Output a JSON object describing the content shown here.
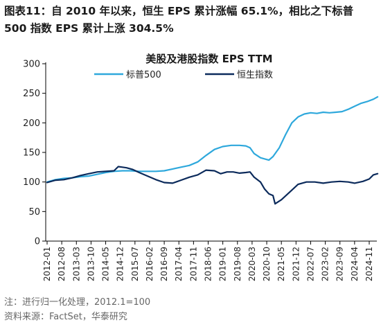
{
  "figure": {
    "label": "图表11：",
    "title": "自 2010 年以来，恒生 EPS 累计涨幅 65.1%，相比之下标普 500 指数 EPS 累计上涨 304.5%"
  },
  "notes": {
    "note": "注：进行归一化处理，2012.1=100",
    "source": "资料来源：FactSet，华泰研究"
  },
  "colors": {
    "sp500": "#2EA8DC",
    "hsi": "#0B2A5B",
    "axis": "#000000"
  },
  "chart_data": {
    "type": "line",
    "title": "美股及港股指数 EPS TTM",
    "xlabel": "",
    "ylabel": "",
    "ylim": [
      0,
      300
    ],
    "yticks": [
      0,
      50,
      100,
      150,
      200,
      250,
      300
    ],
    "xtick_labels": [
      "2012-01",
      "2012-08",
      "2013-03",
      "2013-10",
      "2014-05",
      "2014-12",
      "2015-07",
      "2016-02",
      "2016-09",
      "2017-04",
      "2017-11",
      "2018-06",
      "2019-01",
      "2019-08",
      "2020-03",
      "2020-10",
      "2021-05",
      "2021-12",
      "2022-07",
      "2023-02",
      "2023-09",
      "2024-04",
      "2024-11"
    ],
    "grid": false,
    "legend_position": "top-center",
    "series": [
      {
        "name": "标普500",
        "color_key": "sp500",
        "points": [
          [
            "2012-01",
            100
          ],
          [
            "2012-05",
            104
          ],
          [
            "2012-09",
            106
          ],
          [
            "2013-01",
            107
          ],
          [
            "2013-05",
            109
          ],
          [
            "2013-09",
            110
          ],
          [
            "2014-01",
            113
          ],
          [
            "2014-05",
            116
          ],
          [
            "2014-09",
            118
          ],
          [
            "2015-01",
            119
          ],
          [
            "2015-05",
            119
          ],
          [
            "2015-09",
            118
          ],
          [
            "2016-01",
            118
          ],
          [
            "2016-05",
            118
          ],
          [
            "2016-09",
            119
          ],
          [
            "2017-01",
            122
          ],
          [
            "2017-05",
            125
          ],
          [
            "2017-09",
            128
          ],
          [
            "2018-01",
            134
          ],
          [
            "2018-05",
            145
          ],
          [
            "2018-09",
            155
          ],
          [
            "2019-01",
            160
          ],
          [
            "2019-05",
            162
          ],
          [
            "2019-09",
            162
          ],
          [
            "2019-12",
            161
          ],
          [
            "2020-02",
            158
          ],
          [
            "2020-04",
            148
          ],
          [
            "2020-07",
            141
          ],
          [
            "2020-11",
            137
          ],
          [
            "2021-01",
            143
          ],
          [
            "2021-04",
            158
          ],
          [
            "2021-07",
            180
          ],
          [
            "2021-10",
            200
          ],
          [
            "2022-01",
            210
          ],
          [
            "2022-04",
            215
          ],
          [
            "2022-07",
            217
          ],
          [
            "2022-10",
            216
          ],
          [
            "2023-01",
            218
          ],
          [
            "2023-04",
            217
          ],
          [
            "2023-07",
            218
          ],
          [
            "2023-10",
            219
          ],
          [
            "2024-01",
            223
          ],
          [
            "2024-04",
            228
          ],
          [
            "2024-07",
            233
          ],
          [
            "2024-10",
            236
          ],
          [
            "2025-01",
            240
          ],
          [
            "2025-03",
            244
          ]
        ]
      },
      {
        "name": "恒生指数",
        "color_key": "hsi",
        "points": [
          [
            "2012-01",
            99
          ],
          [
            "2012-05",
            103
          ],
          [
            "2012-09",
            104
          ],
          [
            "2013-01",
            107
          ],
          [
            "2013-05",
            111
          ],
          [
            "2013-09",
            114
          ],
          [
            "2014-01",
            117
          ],
          [
            "2014-05",
            118
          ],
          [
            "2014-09",
            119
          ],
          [
            "2014-11",
            126
          ],
          [
            "2015-01",
            125
          ],
          [
            "2015-03",
            124
          ],
          [
            "2015-06",
            121
          ],
          [
            "2015-09",
            116
          ],
          [
            "2016-01",
            110
          ],
          [
            "2016-05",
            104
          ],
          [
            "2016-09",
            99
          ],
          [
            "2017-01",
            98
          ],
          [
            "2017-05",
            103
          ],
          [
            "2017-09",
            108
          ],
          [
            "2018-01",
            112
          ],
          [
            "2018-05",
            120
          ],
          [
            "2018-09",
            119
          ],
          [
            "2018-12",
            114
          ],
          [
            "2019-03",
            117
          ],
          [
            "2019-06",
            117
          ],
          [
            "2019-09",
            115
          ],
          [
            "2019-12",
            116
          ],
          [
            "2020-02",
            117
          ],
          [
            "2020-04",
            108
          ],
          [
            "2020-07",
            100
          ],
          [
            "2020-09",
            88
          ],
          [
            "2020-11",
            80
          ],
          [
            "2021-01",
            77
          ],
          [
            "2021-02",
            63
          ],
          [
            "2021-05",
            70
          ],
          [
            "2021-09",
            83
          ],
          [
            "2022-01",
            96
          ],
          [
            "2022-05",
            100
          ],
          [
            "2022-09",
            100
          ],
          [
            "2023-01",
            98
          ],
          [
            "2023-05",
            100
          ],
          [
            "2023-09",
            101
          ],
          [
            "2024-01",
            100
          ],
          [
            "2024-04",
            98
          ],
          [
            "2024-08",
            101
          ],
          [
            "2024-11",
            105
          ],
          [
            "2025-01",
            112
          ],
          [
            "2025-03",
            114
          ]
        ]
      }
    ]
  }
}
